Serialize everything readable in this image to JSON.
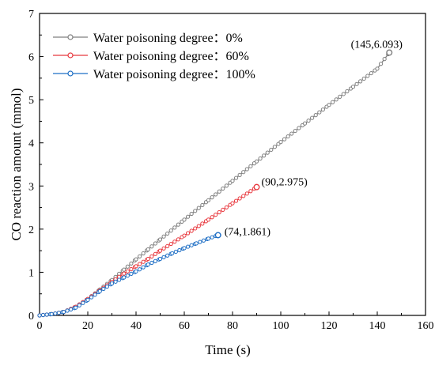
{
  "chart_data": {
    "type": "line",
    "xlabel": "Time (s)",
    "ylabel": "CO reaction amount (mmol)",
    "xlim": [
      0,
      160
    ],
    "ylim": [
      0,
      7
    ],
    "xticks": [
      0,
      20,
      40,
      60,
      80,
      100,
      120,
      140,
      160
    ],
    "yticks": [
      0,
      1,
      2,
      3,
      4,
      5,
      6,
      7
    ],
    "grid": false,
    "legend_position": "top-left",
    "series": [
      {
        "name": "Water poisoning degree：0%",
        "color": "#7f7f7f",
        "x": [
          0,
          5,
          10,
          15,
          20,
          25,
          30,
          35,
          40,
          45,
          50,
          60,
          70,
          80,
          90,
          100,
          110,
          120,
          130,
          140,
          145
        ],
        "y": [
          0,
          0.03,
          0.08,
          0.2,
          0.38,
          0.6,
          0.82,
          1.06,
          1.3,
          1.53,
          1.76,
          2.22,
          2.67,
          3.12,
          3.57,
          4.02,
          4.45,
          4.88,
          5.3,
          5.72,
          6.093
        ]
      },
      {
        "name": "Water poisoning degree：60%",
        "color": "#e8393f",
        "x": [
          0,
          5,
          10,
          15,
          20,
          25,
          30,
          35,
          40,
          45,
          50,
          60,
          70,
          80,
          90
        ],
        "y": [
          0,
          0.03,
          0.08,
          0.2,
          0.38,
          0.58,
          0.78,
          0.97,
          1.14,
          1.31,
          1.5,
          1.85,
          2.22,
          2.6,
          2.975
        ]
      },
      {
        "name": "Water poisoning degree：100%",
        "color": "#1f6fc5",
        "x": [
          0,
          5,
          10,
          15,
          20,
          25,
          30,
          35,
          40,
          45,
          50,
          55,
          60,
          65,
          70,
          74
        ],
        "y": [
          0,
          0.03,
          0.08,
          0.18,
          0.36,
          0.56,
          0.74,
          0.88,
          1.02,
          1.18,
          1.31,
          1.44,
          1.56,
          1.67,
          1.78,
          1.861
        ]
      }
    ],
    "annotations": [
      {
        "text": "(145,6.093)",
        "x": 145,
        "y": 6.093
      },
      {
        "text": "(90,2.975)",
        "x": 90,
        "y": 2.975
      },
      {
        "text": "(74,1.861)",
        "x": 74,
        "y": 1.861
      }
    ]
  }
}
